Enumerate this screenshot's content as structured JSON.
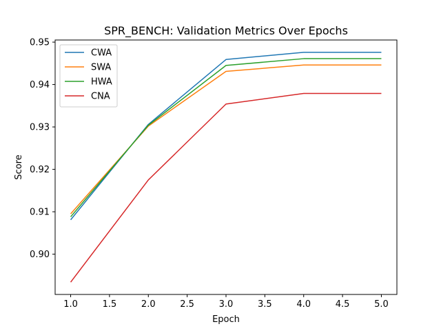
{
  "chart_data": {
    "type": "line",
    "title": "SPR_BENCH: Validation Metrics Over Epochs",
    "xlabel": "Epoch",
    "ylabel": "Score",
    "x": [
      1.0,
      2.0,
      3.0,
      4.0,
      5.0
    ],
    "xlim": [
      0.8,
      5.2
    ],
    "ylim": [
      0.8905,
      0.9505
    ],
    "xticks": [
      1.0,
      1.5,
      2.0,
      2.5,
      3.0,
      3.5,
      4.0,
      4.5,
      5.0
    ],
    "xtick_labels": [
      "1.0",
      "1.5",
      "2.0",
      "2.5",
      "3.0",
      "3.5",
      "4.0",
      "4.5",
      "5.0"
    ],
    "yticks": [
      0.9,
      0.91,
      0.92,
      0.93,
      0.94,
      0.95
    ],
    "ytick_labels": [
      "0.90",
      "0.91",
      "0.92",
      "0.93",
      "0.94",
      "0.95"
    ],
    "grid": false,
    "legend_position": "top-left",
    "series": [
      {
        "name": "CWA",
        "color": "#1f77b4",
        "values": [
          0.9081,
          0.9306,
          0.9459,
          0.9476,
          0.9476
        ]
      },
      {
        "name": "SWA",
        "color": "#ff7f0e",
        "values": [
          0.9095,
          0.9302,
          0.9431,
          0.9446,
          0.9446
        ]
      },
      {
        "name": "HWA",
        "color": "#2ca02c",
        "values": [
          0.9088,
          0.9304,
          0.9445,
          0.9461,
          0.9461
        ]
      },
      {
        "name": "CNA",
        "color": "#d62728",
        "values": [
          0.8934,
          0.9175,
          0.9354,
          0.9379,
          0.9379
        ]
      }
    ]
  }
}
